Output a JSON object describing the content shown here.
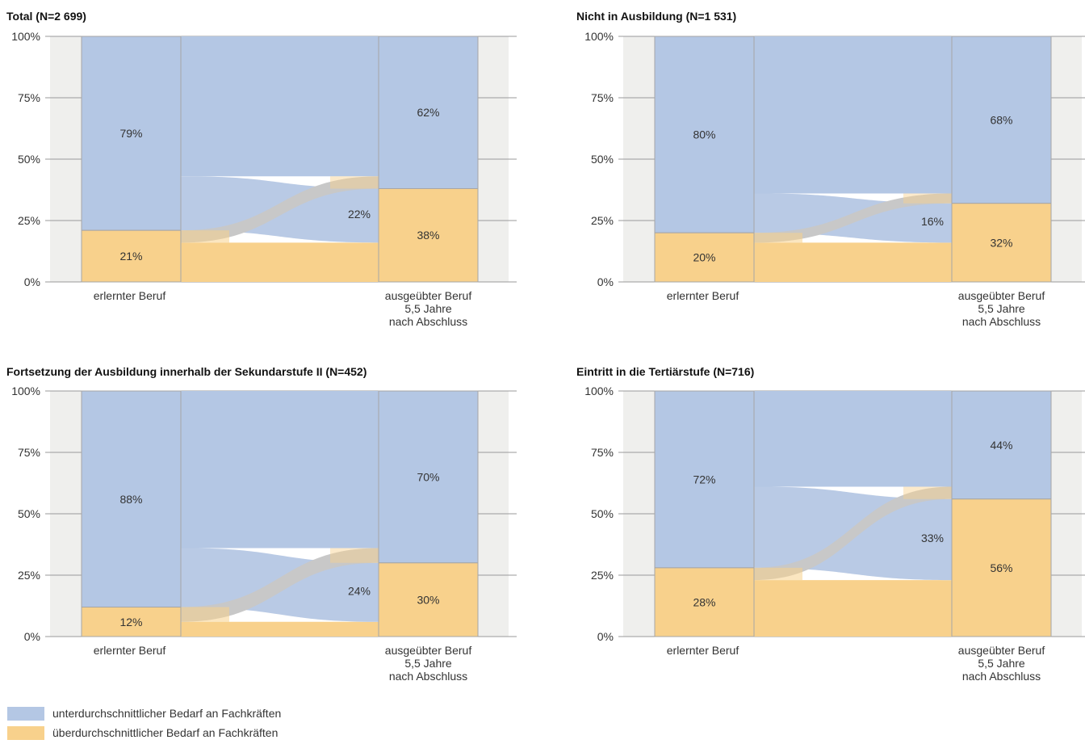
{
  "legend": {
    "items": [
      {
        "label": "unterdurchschnittlicher Bedarf an Fachkräften",
        "color": "#b4c7e4"
      },
      {
        "label": "überdurchschnittlicher Bedarf an Fachkräften",
        "color": "#f8d18c"
      }
    ]
  },
  "colors": {
    "blue": "#b4c7e4",
    "orange": "#f8d18c",
    "gray_bg": "#efefed",
    "flow_gray": "#c8c8c8",
    "flow_light": "#efefed"
  },
  "chart_data": [
    {
      "type": "alluvial",
      "title": "Total (N=2 699)",
      "ylim": [
        0,
        100
      ],
      "yticks": [
        "0%",
        "25%",
        "50%",
        "75%",
        "100%"
      ],
      "categories": [
        "erlernter Beruf",
        "ausgeübter Beruf\n5,5 Jahre\nnach Abschluss"
      ],
      "left": {
        "blue": 79,
        "orange": 21
      },
      "right": {
        "blue": 62,
        "orange": 38
      },
      "flows": {
        "blue_to_blue": 57,
        "blue_to_orange": 22,
        "orange_to_blue": 5,
        "orange_to_orange": 16
      },
      "labels": {
        "left_blue": "79%",
        "left_orange": "21%",
        "right_blue": "62%",
        "right_orange": "38%",
        "flow": "22%"
      }
    },
    {
      "type": "alluvial",
      "title": "Nicht in Ausbildung (N=1 531)",
      "ylim": [
        0,
        100
      ],
      "yticks": [
        "0%",
        "25%",
        "50%",
        "75%",
        "100%"
      ],
      "categories": [
        "erlernter Beruf",
        "ausgeübter Beruf\n5,5 Jahre\nnach Abschluss"
      ],
      "left": {
        "blue": 80,
        "orange": 20
      },
      "right": {
        "blue": 68,
        "orange": 32
      },
      "flows": {
        "blue_to_blue": 64,
        "blue_to_orange": 16,
        "orange_to_blue": 4,
        "orange_to_orange": 16
      },
      "labels": {
        "left_blue": "80%",
        "left_orange": "20%",
        "right_blue": "68%",
        "right_orange": "32%",
        "flow": "16%"
      }
    },
    {
      "type": "alluvial",
      "title": "Fortsetzung der Ausbildung innerhalb der Sekundarstufe II (N=452)",
      "ylim": [
        0,
        100
      ],
      "yticks": [
        "0%",
        "25%",
        "50%",
        "75%",
        "100%"
      ],
      "categories": [
        "erlernter Beruf",
        "ausgeübter Beruf\n5,5 Jahre\nnach Abschluss"
      ],
      "left": {
        "blue": 88,
        "orange": 12
      },
      "right": {
        "blue": 70,
        "orange": 30
      },
      "flows": {
        "blue_to_blue": 64,
        "blue_to_orange": 24,
        "orange_to_blue": 6,
        "orange_to_orange": 6
      },
      "labels": {
        "left_blue": "88%",
        "left_orange": "12%",
        "right_blue": "70%",
        "right_orange": "30%",
        "flow": "24%"
      }
    },
    {
      "type": "alluvial",
      "title": "Eintritt in die Tertiärstufe (N=716)",
      "ylim": [
        0,
        100
      ],
      "yticks": [
        "0%",
        "25%",
        "50%",
        "75%",
        "100%"
      ],
      "categories": [
        "erlernter Beruf",
        "ausgeübter Beruf\n5,5 Jahre\nnach Abschluss"
      ],
      "left": {
        "blue": 72,
        "orange": 28
      },
      "right": {
        "blue": 44,
        "orange": 56
      },
      "flows": {
        "blue_to_blue": 39,
        "blue_to_orange": 33,
        "orange_to_blue": 5,
        "orange_to_orange": 23
      },
      "labels": {
        "left_blue": "72%",
        "left_orange": "28%",
        "right_blue": "44%",
        "right_orange": "56%",
        "flow": "33%"
      }
    }
  ]
}
